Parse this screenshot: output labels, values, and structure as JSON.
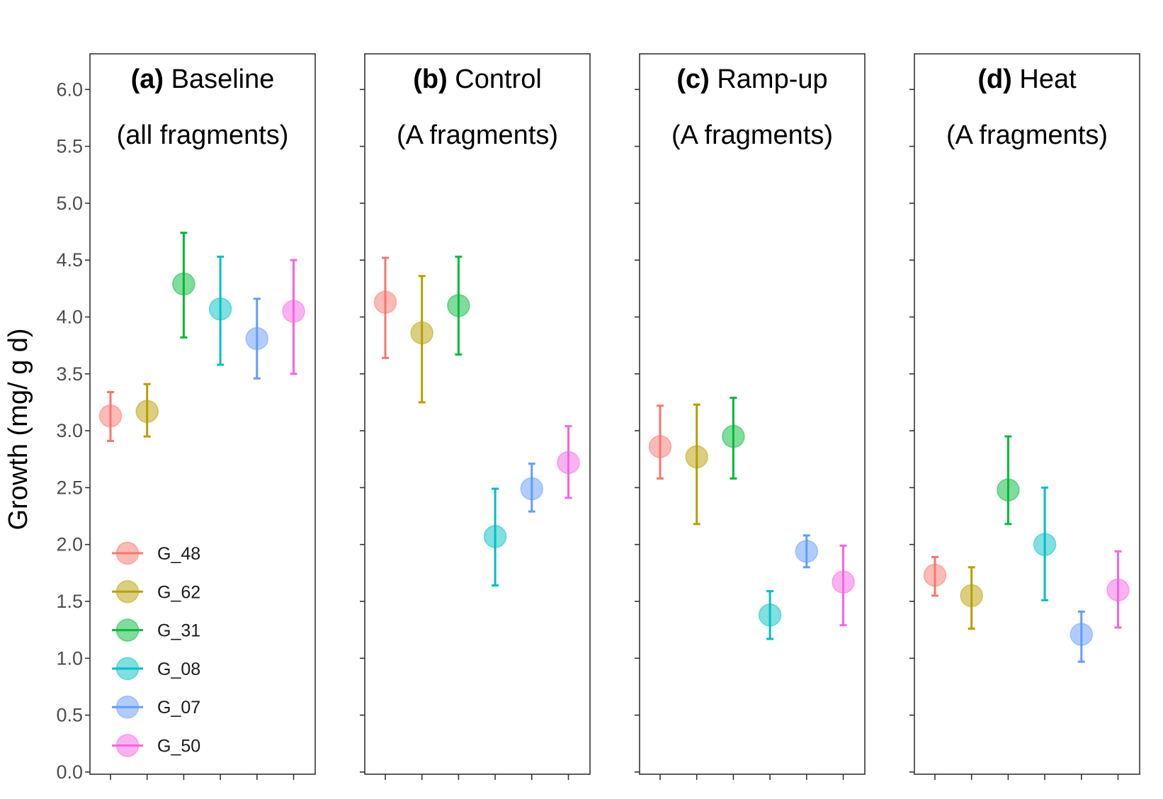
{
  "chart_data": {
    "type": "scatter",
    "ylabel": "Growth (mg/ g d)",
    "ylim": [
      0,
      6.3
    ],
    "yticks": [
      "0.0",
      "0.5",
      "1.0",
      "1.5",
      "2.0",
      "2.5",
      "3.0",
      "3.5",
      "4.0",
      "4.5",
      "5.0",
      "5.5",
      "6.0"
    ],
    "legend": {
      "position": "bottom-left of panel (a)"
    },
    "series": [
      {
        "name": "G_48",
        "color": "#F8766D"
      },
      {
        "name": "G_62",
        "color": "#B79F00"
      },
      {
        "name": "G_31",
        "color": "#00BA38"
      },
      {
        "name": "G_08",
        "color": "#00BFC4"
      },
      {
        "name": "G_07",
        "color": "#619CFF"
      },
      {
        "name": "G_50",
        "color": "#F564E3"
      }
    ],
    "panels": [
      {
        "tag": "(a)",
        "title": "Baseline",
        "subtitle": "(all fragments)",
        "points": [
          {
            "y": 3.13,
            "lo": 2.91,
            "hi": 3.34
          },
          {
            "y": 3.17,
            "lo": 2.95,
            "hi": 3.41
          },
          {
            "y": 4.29,
            "lo": 3.82,
            "hi": 4.74
          },
          {
            "y": 4.07,
            "lo": 3.58,
            "hi": 4.53
          },
          {
            "y": 3.81,
            "lo": 3.46,
            "hi": 4.16
          },
          {
            "y": 4.05,
            "lo": 3.5,
            "hi": 4.5
          }
        ]
      },
      {
        "tag": "(b)",
        "title": "Control",
        "subtitle": "(A fragments)",
        "points": [
          {
            "y": 4.13,
            "lo": 3.64,
            "hi": 4.52
          },
          {
            "y": 3.86,
            "lo": 3.25,
            "hi": 4.36
          },
          {
            "y": 4.1,
            "lo": 3.67,
            "hi": 4.53
          },
          {
            "y": 2.07,
            "lo": 1.64,
            "hi": 2.49
          },
          {
            "y": 2.49,
            "lo": 2.29,
            "hi": 2.71
          },
          {
            "y": 2.72,
            "lo": 2.41,
            "hi": 3.04
          }
        ]
      },
      {
        "tag": "(c)",
        "title": "Ramp-up",
        "subtitle": "(A fragments)",
        "points": [
          {
            "y": 2.86,
            "lo": 2.58,
            "hi": 3.22
          },
          {
            "y": 2.77,
            "lo": 2.18,
            "hi": 3.23
          },
          {
            "y": 2.95,
            "lo": 2.58,
            "hi": 3.29
          },
          {
            "y": 1.38,
            "lo": 1.17,
            "hi": 1.59
          },
          {
            "y": 1.94,
            "lo": 1.8,
            "hi": 2.08
          },
          {
            "y": 1.67,
            "lo": 1.29,
            "hi": 1.99
          }
        ]
      },
      {
        "tag": "(d)",
        "title": "Heat",
        "subtitle": "(A fragments)",
        "points": [
          {
            "y": 1.73,
            "lo": 1.55,
            "hi": 1.89
          },
          {
            "y": 1.55,
            "lo": 1.26,
            "hi": 1.8
          },
          {
            "y": 2.48,
            "lo": 2.18,
            "hi": 2.95
          },
          {
            "y": 2.0,
            "lo": 1.51,
            "hi": 2.5
          },
          {
            "y": 1.21,
            "lo": 0.97,
            "hi": 1.41
          },
          {
            "y": 1.6,
            "lo": 1.27,
            "hi": 1.94
          }
        ]
      }
    ]
  }
}
